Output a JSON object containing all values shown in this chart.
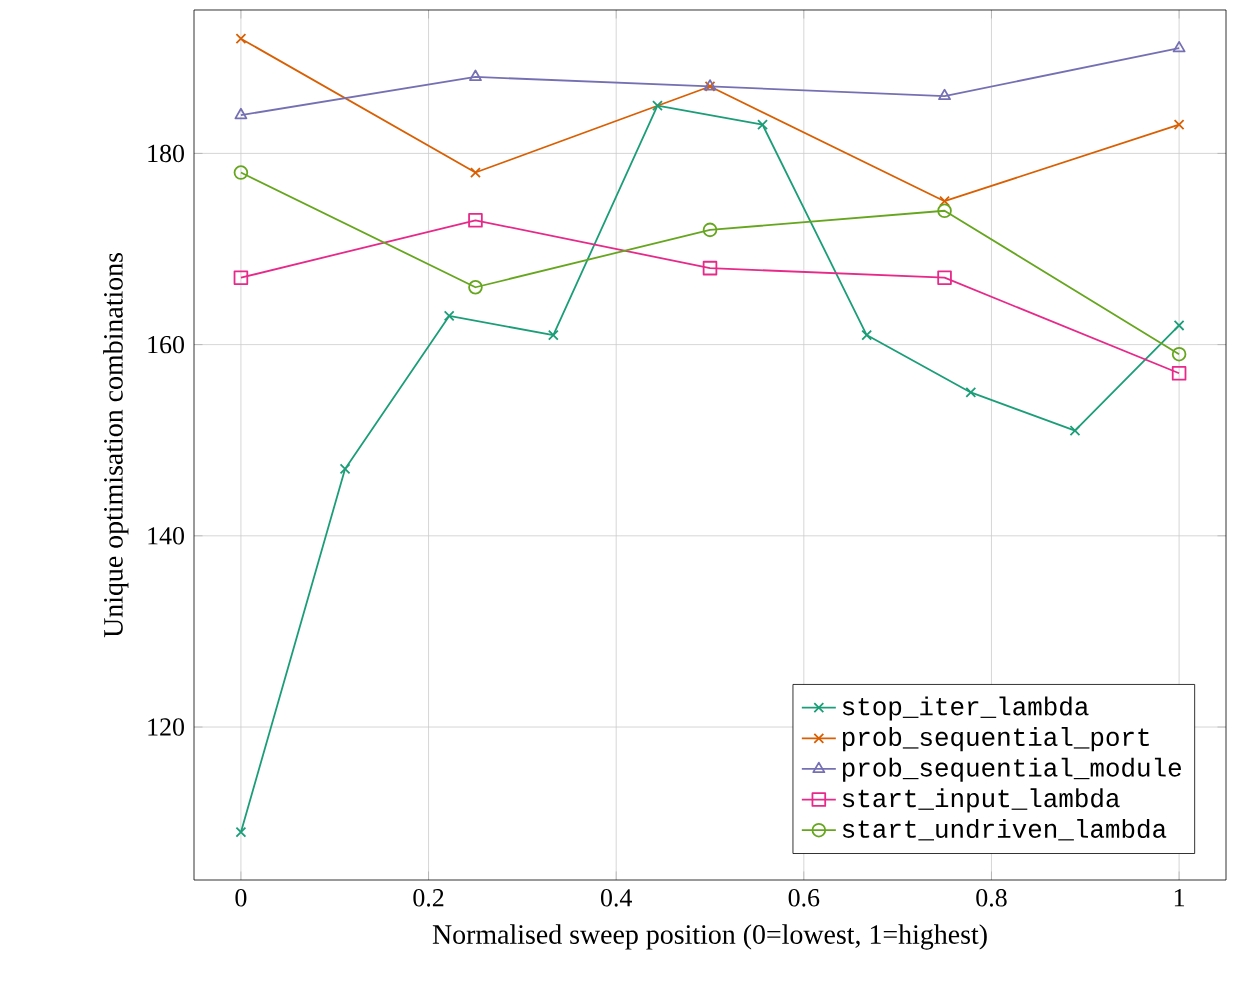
{
  "chart_data": {
    "type": "line",
    "xlabel": "Normalised sweep position (0=lowest, 1=highest)",
    "ylabel": "Unique optimisation combinations",
    "xlim": [
      -0.05,
      1.05
    ],
    "ylim": [
      104,
      195
    ],
    "xticks": [
      0,
      0.2,
      0.4,
      0.6,
      0.8,
      1
    ],
    "yticks": [
      120,
      140,
      160,
      180
    ],
    "grid": true,
    "legend": "bottom right",
    "series": [
      {
        "name": "stop_iter_lambda",
        "color": "#1b9e77",
        "marker": "cross",
        "x": [
          0,
          0.111,
          0.222,
          0.333,
          0.444,
          0.556,
          0.667,
          0.778,
          0.889,
          1
        ],
        "values": [
          109,
          147,
          163,
          161,
          185,
          183,
          161,
          155,
          151,
          162
        ]
      },
      {
        "name": "prob_sequential_port",
        "color": "#d95f02",
        "marker": "cross",
        "x": [
          0,
          0.25,
          0.5,
          0.75,
          1
        ],
        "values": [
          192,
          178,
          187,
          175,
          183
        ]
      },
      {
        "name": "prob_sequential_module",
        "color": "#7570b3",
        "marker": "triangle",
        "x": [
          0,
          0.25,
          0.5,
          0.75,
          1
        ],
        "values": [
          184,
          188,
          187,
          186,
          191
        ]
      },
      {
        "name": "start_input_lambda",
        "color": "#e7298a",
        "marker": "square",
        "x": [
          0,
          0.25,
          0.5,
          0.75,
          1
        ],
        "values": [
          167,
          173,
          168,
          167,
          157
        ]
      },
      {
        "name": "start_undriven_lambda",
        "color": "#66a61e",
        "marker": "circle",
        "x": [
          0,
          0.25,
          0.5,
          0.75,
          1
        ],
        "values": [
          178,
          166,
          172,
          174,
          159
        ]
      }
    ]
  }
}
